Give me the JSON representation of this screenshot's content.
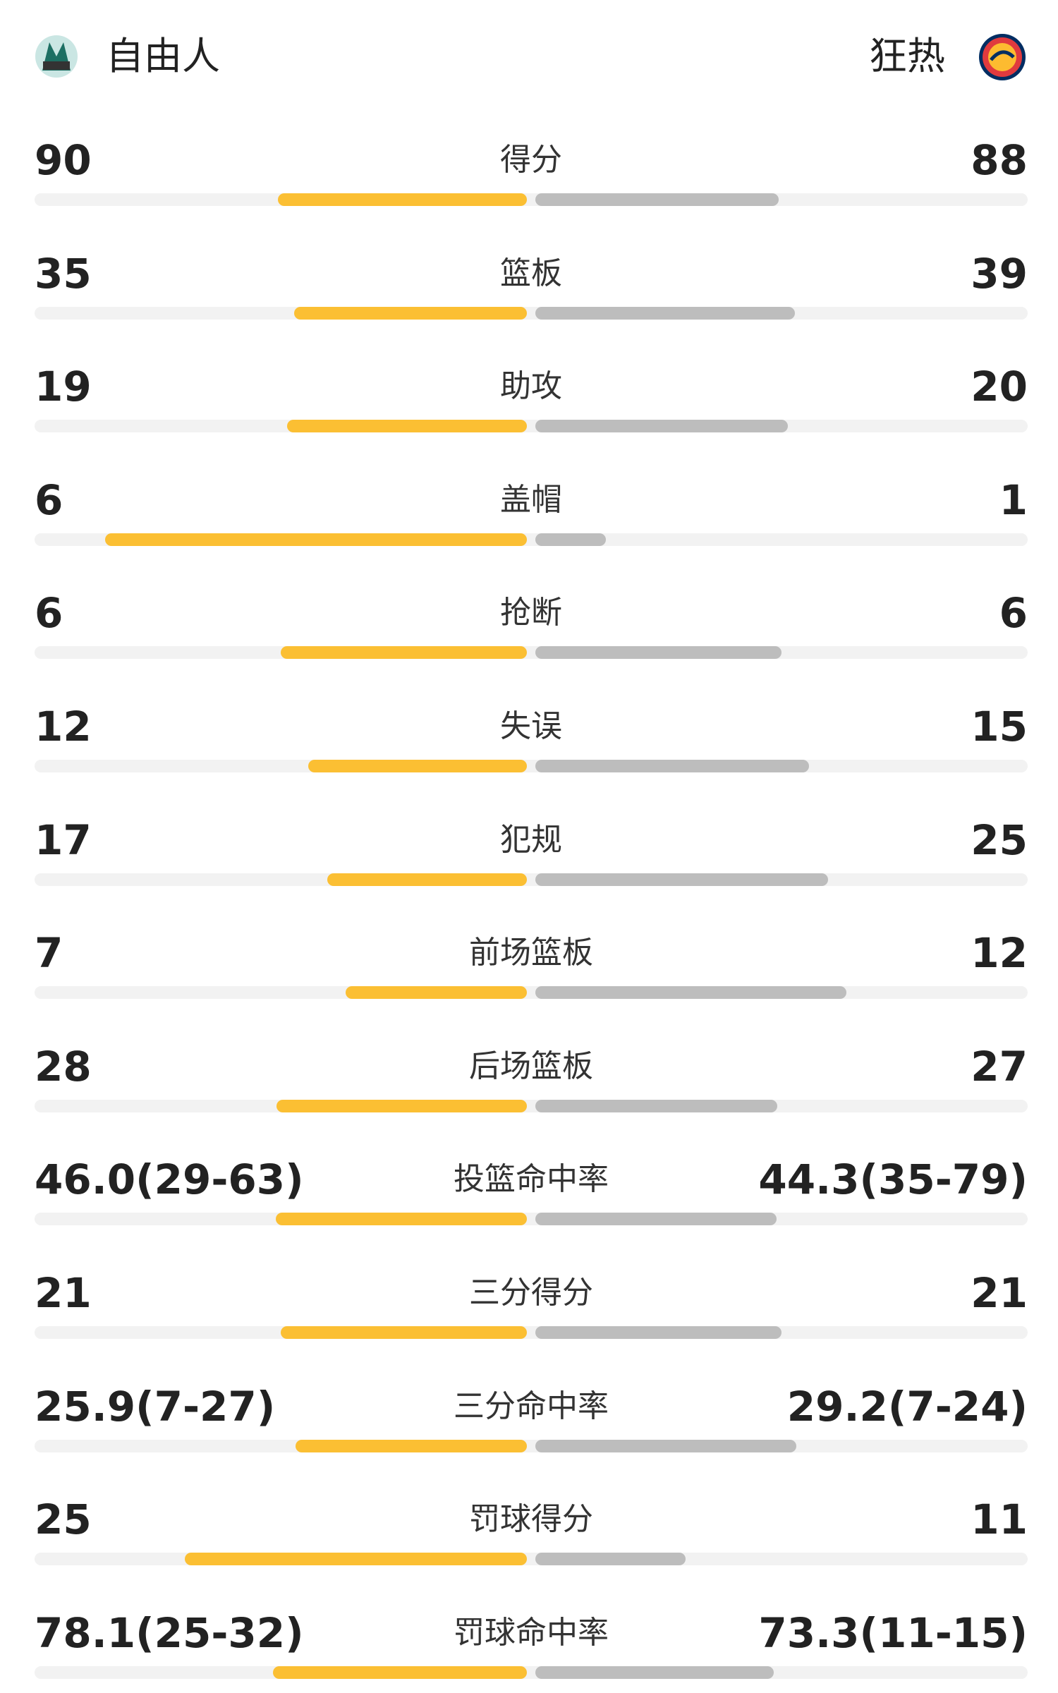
{
  "header": {
    "home_team": "自由人",
    "away_team": "狂热"
  },
  "rows": [
    {
      "label": "得分",
      "home": 90,
      "away": 88
    },
    {
      "label": "篮板",
      "home": 35,
      "away": 39
    },
    {
      "label": "助攻",
      "home": 19,
      "away": 20
    },
    {
      "label": "盖帽",
      "home": 6,
      "away": 1
    },
    {
      "label": "抢断",
      "home": 6,
      "away": 6
    },
    {
      "label": "失误",
      "home": 12,
      "away": 15
    },
    {
      "label": "犯规",
      "home": 17,
      "away": 25
    },
    {
      "label": "前场篮板",
      "home": 7,
      "away": 12
    },
    {
      "label": "后场篮板",
      "home": 28,
      "away": 27
    },
    {
      "label": "投篮命中率",
      "home": {
        "value": 46.0,
        "label": "46.0(29-63)"
      },
      "away": {
        "value": 44.3,
        "label": "44.3(35-79)"
      }
    },
    {
      "label": "三分得分",
      "home": 21,
      "away": 21
    },
    {
      "label": "三分命中率",
      "home": {
        "value": 25.9,
        "label": "25.9(7-27)"
      },
      "away": {
        "value": 29.2,
        "label": "29.2(7-24)"
      }
    },
    {
      "label": "罚球得分",
      "home": 25,
      "away": 11
    },
    {
      "label": "罚球命中率",
      "home": {
        "value": 78.1,
        "label": "78.1(25-32)"
      },
      "away": {
        "value": 73.3,
        "label": "73.3(11-15)"
      }
    }
  ]
}
